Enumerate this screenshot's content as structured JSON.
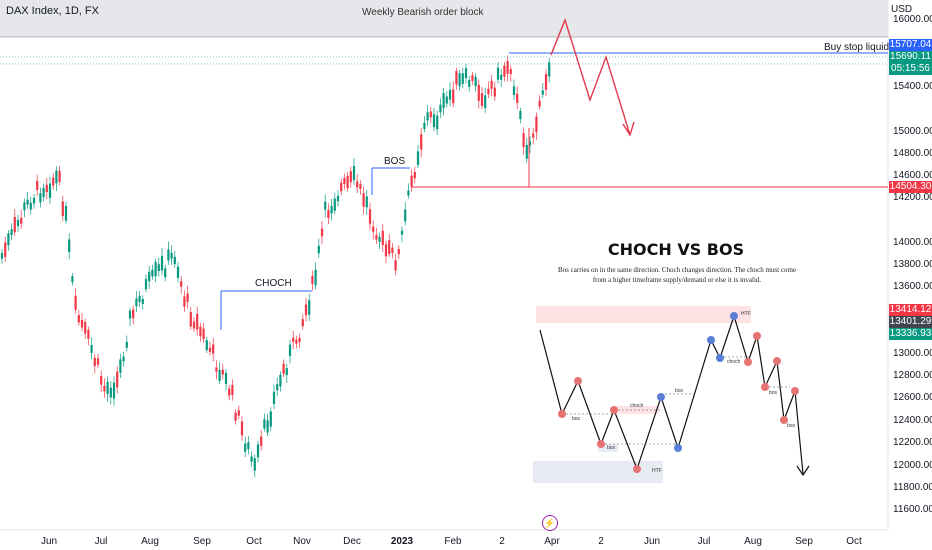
{
  "header": {
    "title": "DAX Index, 1D, FX"
  },
  "annotations": {
    "weekly_zone": "Weekly Bearish order block",
    "buy_stop": "Buy stop liquidity",
    "bos": "BOS",
    "choch": "CHOCH"
  },
  "axis": {
    "currency": "USD",
    "y_ticks": [
      "16000.00",
      "15400.00",
      "15000.00",
      "14800.00",
      "14600.00",
      "14200.00",
      "14000.00",
      "13800.00",
      "13600.00",
      "13000.00",
      "12800.00",
      "12600.00",
      "12400.00",
      "12200.00",
      "12000.00",
      "11800.00",
      "11600.00"
    ],
    "x_ticks": [
      "Jun",
      "Jul",
      "Aug",
      "Sep",
      "Oct",
      "Nov",
      "Dec",
      "2023",
      "Feb",
      "2",
      "Apr",
      "2",
      "Jun",
      "Jul",
      "Aug",
      "Sep",
      "Oct"
    ]
  },
  "price_badges": [
    {
      "label": "15707.04",
      "color": "#2962ff"
    },
    {
      "label": "15690.11",
      "color": "#089981"
    },
    {
      "label": "05:15:56",
      "color": "#089981"
    },
    {
      "label": "14504.30",
      "color": "#f23645"
    },
    {
      "label": "13414.12",
      "color": "#f23645"
    },
    {
      "label": "13401.29",
      "color": "#434651"
    },
    {
      "label": "13336.93",
      "color": "#089981"
    }
  ],
  "education": {
    "title": "CHOCH VS BOS",
    "description": "Bos carries on in the same direction. Choch changes direction. The choch must come from a higher timeframe supply/demand or else it is invalid.",
    "labels": {
      "htf": "HTF",
      "bos": "bos",
      "choch": "choch"
    }
  },
  "colors": {
    "up": "#089981",
    "down": "#f23645",
    "projection": "#e0394b",
    "structure": "#2962ff",
    "zone": "#e3e5ea",
    "demand_zone": "#e7ebf2",
    "supply_zone": "#fde3e4"
  },
  "icons": {
    "alert": "lightning-icon"
  }
}
